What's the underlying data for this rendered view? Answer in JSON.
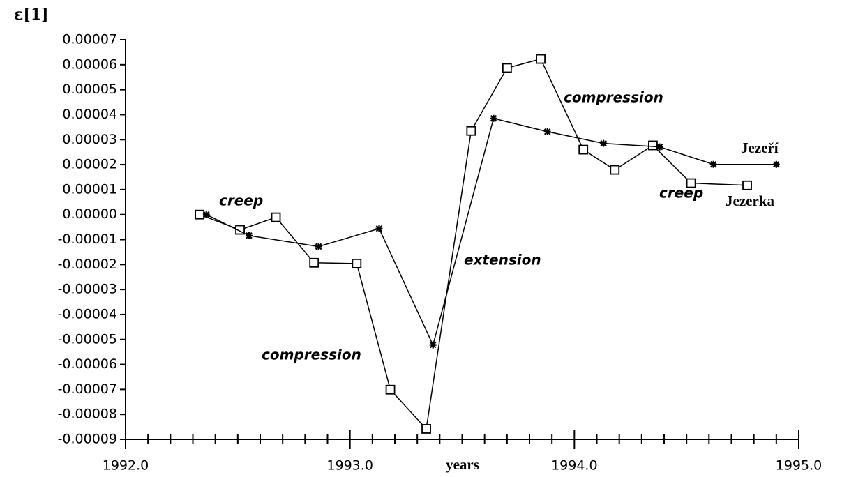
{
  "chart_data": {
    "type": "line",
    "y_label": "ε[1]",
    "x_label": "years",
    "annotations": [
      "creep",
      "compression",
      "extension",
      "compression",
      "creep"
    ],
    "xlim": [
      1992,
      1995
    ],
    "xticks": [
      {
        "value": 1992,
        "label": "1992.0"
      },
      {
        "value": 1993,
        "label": "1993.0"
      },
      {
        "value": 1994,
        "label": "1994.0"
      },
      {
        "value": 1995,
        "label": "1995.0"
      }
    ],
    "xminorticks": [
      1992.1,
      1992.2,
      1992.3,
      1992.4,
      1992.5,
      1992.6,
      1992.7,
      1992.8,
      1992.9,
      1993.1,
      1993.2,
      1993.3,
      1993.4,
      1993.5,
      1993.6,
      1993.7,
      1993.8,
      1993.9,
      1994.1,
      1994.2,
      1994.3,
      1994.4,
      1994.5,
      1994.6,
      1994.7,
      1994.8,
      1994.9
    ],
    "ylim": [
      -9e-05,
      7e-05
    ],
    "yticks": [
      {
        "value": 7e-05,
        "label": "0.00007"
      },
      {
        "value": 6e-05,
        "label": "0.00006"
      },
      {
        "value": 5e-05,
        "label": "0.00005"
      },
      {
        "value": 4e-05,
        "label": "0.00004"
      },
      {
        "value": 3e-05,
        "label": "0.00003"
      },
      {
        "value": 2e-05,
        "label": "0.00002"
      },
      {
        "value": 1e-05,
        "label": "0.00001"
      },
      {
        "value": 0,
        "label": "0.00000"
      },
      {
        "value": -1e-05,
        "label": "-0.00001"
      },
      {
        "value": -2e-05,
        "label": "-0.00002"
      },
      {
        "value": -3e-05,
        "label": "-0.00003"
      },
      {
        "value": -4e-05,
        "label": "-0.00004"
      },
      {
        "value": -5e-05,
        "label": "-0.00005"
      },
      {
        "value": -6e-05,
        "label": "-0.00006"
      },
      {
        "value": -7e-05,
        "label": "-0.00007"
      },
      {
        "value": -8e-05,
        "label": "-0.00008"
      },
      {
        "value": -9e-05,
        "label": "-0.00009"
      }
    ],
    "series": [
      {
        "name": "Jezerka",
        "color": "#000000",
        "marker": "square",
        "x": [
          1992.33,
          1992.51,
          1992.67,
          1992.84,
          1993.03,
          1993.18,
          1993.34,
          1993.54,
          1993.7,
          1993.85,
          1994.04,
          1994.18,
          1994.35,
          1994.52,
          1994.77
        ],
        "values": [
          0,
          -6.1e-06,
          -1.1e-06,
          -1.93e-05,
          -1.96e-05,
          -7.01e-05,
          -8.58e-05,
          3.35e-05,
          5.87e-05,
          6.23e-05,
          2.6e-05,
          1.79e-05,
          2.77e-05,
          1.26e-05,
          1.17e-05
        ]
      },
      {
        "name": "Jezeří",
        "color": "#000000",
        "marker": "star",
        "x": [
          1992.36,
          1992.55,
          1992.86,
          1993.13,
          1993.37,
          1993.64,
          1993.88,
          1994.13,
          1994.38,
          1994.62,
          1994.9
        ],
        "values": [
          0,
          -8.4e-06,
          -1.28e-05,
          -5.6e-06,
          -5.22e-05,
          3.85e-05,
          3.32e-05,
          2.85e-05,
          2.71e-05,
          2.01e-05,
          2.01e-05
        ]
      }
    ]
  }
}
